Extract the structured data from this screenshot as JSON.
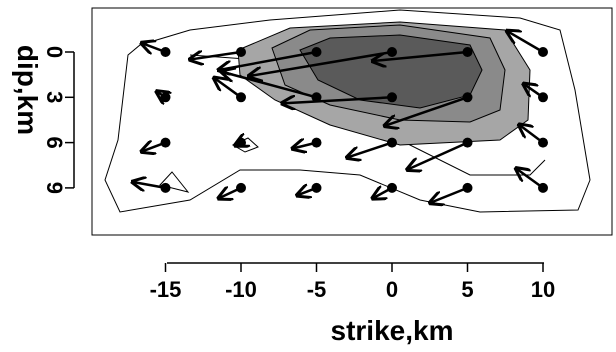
{
  "chart_data": {
    "type": "vector-field-contour",
    "xlabel": "strike,km",
    "ylabel": "dip,km",
    "xlim": [
      -15,
      10
    ],
    "ylim": [
      0,
      9
    ],
    "x_ticks": [
      -15,
      -10,
      -5,
      0,
      5,
      10
    ],
    "x_tick_labels": [
      "-15",
      "-10",
      "-5",
      "0",
      "5",
      "10"
    ],
    "y_ticks": [
      0,
      3,
      6,
      9
    ],
    "y_tick_labels": [
      "0",
      "3",
      "6",
      "9"
    ],
    "grid": false,
    "colors": {
      "contour_fill_levels": [
        "#ffffff",
        "#a6a6a6",
        "#8a8a8a",
        "#5a5a5a"
      ],
      "line": "#000000"
    },
    "vectors": [
      {
        "x": -15,
        "y": 0,
        "dx": -1.6,
        "dy": -0.6
      },
      {
        "x": -10,
        "y": 0,
        "dx": -3.4,
        "dy": 0.5
      },
      {
        "x": -5,
        "y": 0,
        "dx": -6.5,
        "dy": 1.2
      },
      {
        "x": 0,
        "y": 0,
        "dx": -9.5,
        "dy": 1.6
      },
      {
        "x": 5,
        "y": 0,
        "dx": -6.3,
        "dy": 0.6
      },
      {
        "x": 10,
        "y": 0,
        "dx": -2.4,
        "dy": -1.4
      },
      {
        "x": -15,
        "y": 3,
        "dx": -0.6,
        "dy": -0.4
      },
      {
        "x": -10,
        "y": 3,
        "dx": -1.8,
        "dy": -1.3
      },
      {
        "x": -5,
        "y": 3,
        "dx": -6.3,
        "dy": -1.7
      },
      {
        "x": 0,
        "y": 3,
        "dx": -7.3,
        "dy": 0.4
      },
      {
        "x": 5,
        "y": 3,
        "dx": -5.5,
        "dy": 1.9
      },
      {
        "x": 10,
        "y": 3,
        "dx": -1.3,
        "dy": -0.9
      },
      {
        "x": -15,
        "y": 6,
        "dx": -1.6,
        "dy": 0.6
      },
      {
        "x": -10,
        "y": 6,
        "dx": -0.4,
        "dy": 0.2
      },
      {
        "x": -5,
        "y": 6,
        "dx": -1.6,
        "dy": 0.4
      },
      {
        "x": 0,
        "y": 6,
        "dx": -3.0,
        "dy": 1.0
      },
      {
        "x": 5,
        "y": 6,
        "dx": -4.0,
        "dy": 1.8
      },
      {
        "x": 10,
        "y": 6,
        "dx": -1.6,
        "dy": -1.2
      },
      {
        "x": -15,
        "y": 9,
        "dx": -2.2,
        "dy": -0.4
      },
      {
        "x": -10,
        "y": 9,
        "dx": -1.5,
        "dy": 0.7
      },
      {
        "x": -5,
        "y": 9,
        "dx": -1.3,
        "dy": 0.5
      },
      {
        "x": 0,
        "y": 9,
        "dx": -1.3,
        "dy": 0.7
      },
      {
        "x": 5,
        "y": 9,
        "dx": -2.5,
        "dy": 1.0
      },
      {
        "x": 10,
        "y": 9,
        "dx": -1.8,
        "dy": -1.3
      }
    ]
  }
}
